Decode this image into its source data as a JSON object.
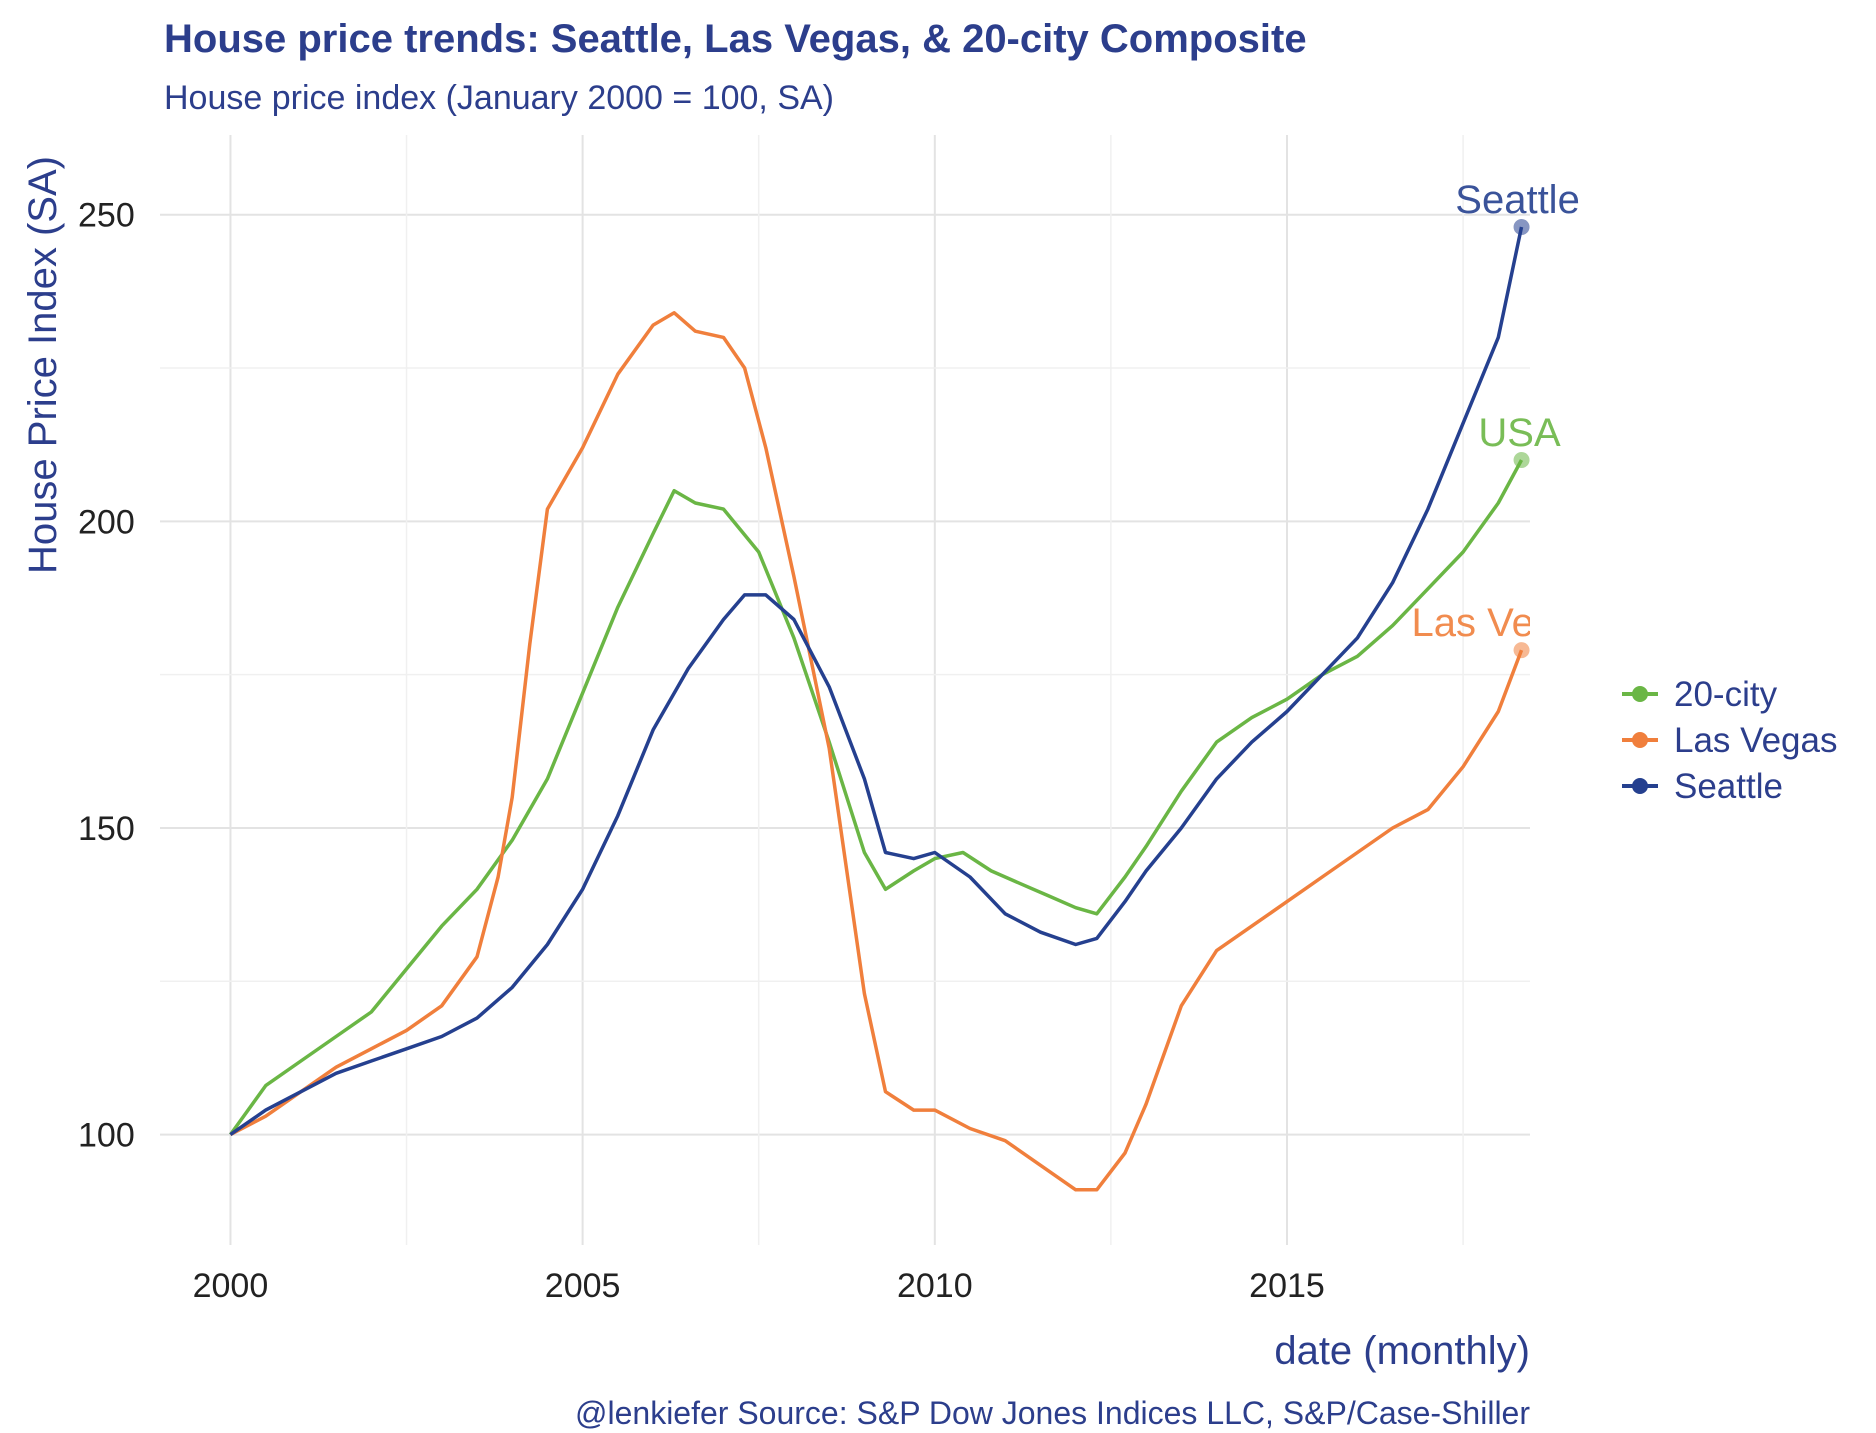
{
  "colors": {
    "text": "#2c3e8c",
    "grid": "#e3e3e3",
    "seattle": "#25408f",
    "las_vegas": "#f07f3c",
    "usa": "#6ab645"
  },
  "chart_data": {
    "type": "line",
    "title": "House price trends: Seattle, Las Vegas, & 20-city Composite",
    "subtitle": "House price index (January 2000 = 100, SA)",
    "xlabel": "date (monthly)",
    "ylabel": "House Price Index (SA)",
    "caption": "@lenkiefer Source: S&P Dow Jones Indices LLC, S&P/Case-Shiller",
    "xlim": [
      1999,
      2018.45
    ],
    "ylim": [
      82,
      263
    ],
    "xticks": [
      2000,
      2005,
      2010,
      2015
    ],
    "xtick_labels": [
      "2000",
      "2005",
      "2010",
      "2015"
    ],
    "yticks": [
      100,
      150,
      200,
      250
    ],
    "ytick_labels": [
      "100",
      "150",
      "200",
      "250"
    ],
    "grid": true,
    "legend_position": "right",
    "series": [
      {
        "name": "20-city",
        "end_label": "USA",
        "color_key": "usa",
        "points": [
          [
            2000.0,
            100
          ],
          [
            2000.5,
            108
          ],
          [
            2001.0,
            112
          ],
          [
            2001.5,
            116
          ],
          [
            2002.0,
            120
          ],
          [
            2002.5,
            127
          ],
          [
            2003.0,
            134
          ],
          [
            2003.5,
            140
          ],
          [
            2004.0,
            148
          ],
          [
            2004.5,
            158
          ],
          [
            2005.0,
            172
          ],
          [
            2005.5,
            186
          ],
          [
            2006.0,
            198
          ],
          [
            2006.3,
            205
          ],
          [
            2006.6,
            203
          ],
          [
            2007.0,
            202
          ],
          [
            2007.5,
            195
          ],
          [
            2008.0,
            181
          ],
          [
            2008.5,
            164
          ],
          [
            2009.0,
            146
          ],
          [
            2009.3,
            140
          ],
          [
            2009.7,
            143
          ],
          [
            2010.0,
            145
          ],
          [
            2010.4,
            146
          ],
          [
            2010.8,
            143
          ],
          [
            2011.2,
            141
          ],
          [
            2011.6,
            139
          ],
          [
            2012.0,
            137
          ],
          [
            2012.3,
            136
          ],
          [
            2012.7,
            142
          ],
          [
            2013.0,
            147
          ],
          [
            2013.5,
            156
          ],
          [
            2014.0,
            164
          ],
          [
            2014.5,
            168
          ],
          [
            2015.0,
            171
          ],
          [
            2015.5,
            175
          ],
          [
            2016.0,
            178
          ],
          [
            2016.5,
            183
          ],
          [
            2017.0,
            189
          ],
          [
            2017.5,
            195
          ],
          [
            2018.0,
            203
          ],
          [
            2018.33,
            210
          ]
        ]
      },
      {
        "name": "Las Vegas",
        "end_label": "Las Vegas",
        "color_key": "las_vegas",
        "points": [
          [
            2000.0,
            100
          ],
          [
            2000.5,
            103
          ],
          [
            2001.0,
            107
          ],
          [
            2001.5,
            111
          ],
          [
            2002.0,
            114
          ],
          [
            2002.5,
            117
          ],
          [
            2003.0,
            121
          ],
          [
            2003.5,
            129
          ],
          [
            2003.8,
            142
          ],
          [
            2004.0,
            155
          ],
          [
            2004.25,
            180
          ],
          [
            2004.5,
            202
          ],
          [
            2005.0,
            212
          ],
          [
            2005.5,
            224
          ],
          [
            2006.0,
            232
          ],
          [
            2006.3,
            234
          ],
          [
            2006.6,
            231
          ],
          [
            2007.0,
            230
          ],
          [
            2007.3,
            225
          ],
          [
            2007.6,
            212
          ],
          [
            2008.0,
            191
          ],
          [
            2008.5,
            163
          ],
          [
            2009.0,
            123
          ],
          [
            2009.3,
            107
          ],
          [
            2009.7,
            104
          ],
          [
            2010.0,
            104
          ],
          [
            2010.5,
            101
          ],
          [
            2011.0,
            99
          ],
          [
            2011.5,
            95
          ],
          [
            2012.0,
            91
          ],
          [
            2012.3,
            91
          ],
          [
            2012.7,
            97
          ],
          [
            2013.0,
            105
          ],
          [
            2013.5,
            121
          ],
          [
            2014.0,
            130
          ],
          [
            2014.5,
            134
          ],
          [
            2015.0,
            138
          ],
          [
            2015.5,
            142
          ],
          [
            2016.0,
            146
          ],
          [
            2016.5,
            150
          ],
          [
            2017.0,
            153
          ],
          [
            2017.5,
            160
          ],
          [
            2018.0,
            169
          ],
          [
            2018.33,
            179
          ]
        ]
      },
      {
        "name": "Seattle",
        "end_label": "Seattle",
        "color_key": "seattle",
        "points": [
          [
            2000.0,
            100
          ],
          [
            2000.5,
            104
          ],
          [
            2001.0,
            107
          ],
          [
            2001.5,
            110
          ],
          [
            2002.0,
            112
          ],
          [
            2002.5,
            114
          ],
          [
            2003.0,
            116
          ],
          [
            2003.5,
            119
          ],
          [
            2004.0,
            124
          ],
          [
            2004.5,
            131
          ],
          [
            2005.0,
            140
          ],
          [
            2005.5,
            152
          ],
          [
            2006.0,
            166
          ],
          [
            2006.5,
            176
          ],
          [
            2007.0,
            184
          ],
          [
            2007.3,
            188
          ],
          [
            2007.6,
            188
          ],
          [
            2008.0,
            184
          ],
          [
            2008.5,
            173
          ],
          [
            2009.0,
            158
          ],
          [
            2009.3,
            146
          ],
          [
            2009.7,
            145
          ],
          [
            2010.0,
            146
          ],
          [
            2010.5,
            142
          ],
          [
            2011.0,
            136
          ],
          [
            2011.5,
            133
          ],
          [
            2012.0,
            131
          ],
          [
            2012.3,
            132
          ],
          [
            2012.7,
            138
          ],
          [
            2013.0,
            143
          ],
          [
            2013.5,
            150
          ],
          [
            2014.0,
            158
          ],
          [
            2014.5,
            164
          ],
          [
            2015.0,
            169
          ],
          [
            2015.5,
            175
          ],
          [
            2016.0,
            181
          ],
          [
            2016.5,
            190
          ],
          [
            2017.0,
            202
          ],
          [
            2017.5,
            216
          ],
          [
            2018.0,
            230
          ],
          [
            2018.33,
            248
          ]
        ]
      }
    ]
  }
}
